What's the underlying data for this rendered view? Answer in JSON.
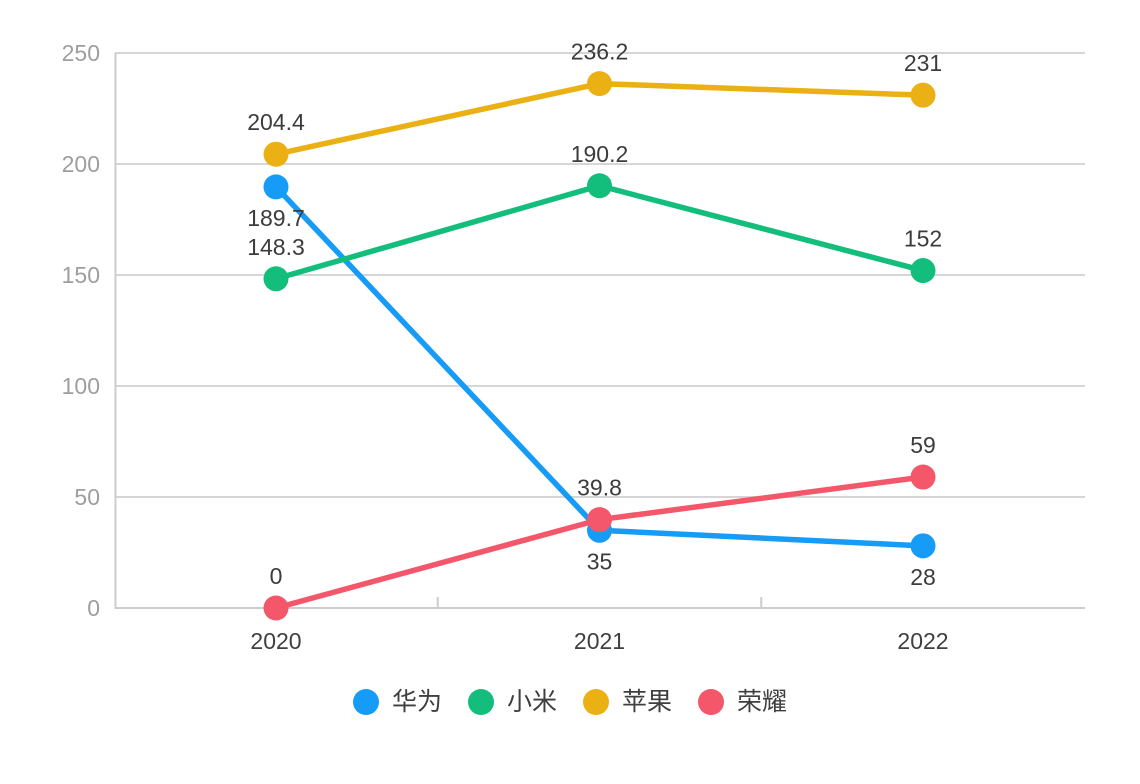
{
  "chart_data": {
    "type": "line",
    "title": "",
    "xlabel": "",
    "ylabel": "",
    "x": [
      "2020",
      "2021",
      "2022"
    ],
    "series": [
      {
        "id": "huawei",
        "name": "华为",
        "color": "#169bf7",
        "values": [
          189.7,
          35,
          28
        ],
        "label_position": "below"
      },
      {
        "id": "xiaomi",
        "name": "小米",
        "color": "#13be7d",
        "values": [
          148.3,
          190.2,
          152
        ],
        "label_position": "above"
      },
      {
        "id": "apple",
        "name": "苹果",
        "color": "#eab014",
        "values": [
          204.4,
          236.2,
          231
        ],
        "label_position": "above"
      },
      {
        "id": "honor",
        "name": "荣耀",
        "color": "#f4566a",
        "values": [
          0,
          39.8,
          59
        ],
        "label_position": "above"
      }
    ],
    "y_ticks": [
      0,
      50,
      100,
      150,
      200,
      250
    ],
    "ylim": [
      0,
      250
    ],
    "grid": true,
    "legend_position": "bottom"
  },
  "style": {
    "background": "#ffffff",
    "grid_color": "#d6d6d6",
    "axis_color": "#cccccc",
    "y_tick_label_color": "#9e9e9e",
    "x_label_color": "#404040",
    "data_label_color": "#3c3c3c",
    "legend_label_color": "#3f3f3f"
  }
}
